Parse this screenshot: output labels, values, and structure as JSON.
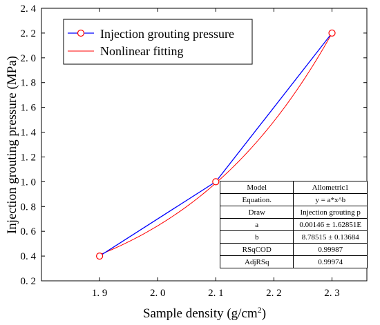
{
  "chart_data": {
    "type": "line",
    "xlabel": "Sample density (g/cm",
    "xlabel_sup": "2",
    "xlabel_end": ")",
    "ylabel": "Injection grouting pressure (MPa)",
    "xlim": [
      1.8,
      2.36
    ],
    "ylim": [
      0.2,
      2.4
    ],
    "x_ticks": [
      1.9,
      2.0,
      2.1,
      2.2,
      2.3
    ],
    "x_tick_labels": [
      "1. 9",
      "2. 0",
      "2. 1",
      "2. 2",
      "2. 3"
    ],
    "y_ticks": [
      0.2,
      0.4,
      0.6,
      0.8,
      1.0,
      1.2,
      1.4,
      1.6,
      1.8,
      2.0,
      2.2,
      2.4
    ],
    "y_tick_labels": [
      "0. 2",
      "0. 4",
      "0. 6",
      "0. 8",
      "1. 0",
      "1. 2",
      "1. 4",
      "1. 6",
      "1. 8",
      "2. 0",
      "2. 2",
      "2. 4"
    ],
    "grid": false,
    "legend_position": "top-left",
    "series": [
      {
        "name": "Injection grouting pressure",
        "color": "#0000ff",
        "marker_color": "#ff0000",
        "marker": "open-circle",
        "x": [
          1.9,
          2.1,
          2.3
        ],
        "y": [
          0.4,
          1.0,
          2.2
        ]
      },
      {
        "name": "Nonlinear fitting",
        "color": "#ff0000",
        "model": "allometric",
        "a": 0.00146,
        "b": 8.78515,
        "x_range": [
          1.9,
          2.3
        ]
      }
    ],
    "fit_table": {
      "position": "bottom-right",
      "rows": [
        [
          "Model",
          "Allometric1"
        ],
        [
          "Equation.",
          "y = a*x^b"
        ],
        [
          "Draw",
          "Injection grouting p"
        ],
        [
          "a",
          "0.00146 ± 1.62851E"
        ],
        [
          "b",
          "8.78515 ± 0.13684"
        ],
        [
          "RSqCOD",
          "0.99987"
        ],
        [
          "AdjRSq",
          "0.99974"
        ]
      ]
    }
  }
}
